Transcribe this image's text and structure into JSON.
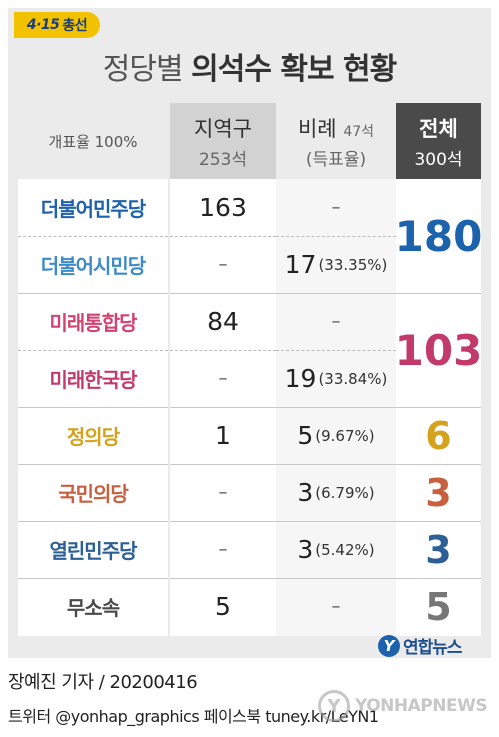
{
  "badge": {
    "mark": "4·15",
    "label": "총선"
  },
  "title": {
    "light": "정당별",
    "bold": "의석수 확보 현황"
  },
  "header": {
    "counting": "개표율 100%",
    "district": {
      "label": "지역구",
      "seats": "253석"
    },
    "pr": {
      "label": "비례",
      "seats": "47석",
      "sub": "(득표율)"
    },
    "total": {
      "label": "전체",
      "seats": "300석"
    }
  },
  "rows": [
    {
      "party": "더불어민주당",
      "color": "#1d62ad",
      "district": "163",
      "pr": "–",
      "pr_pct": ""
    },
    {
      "party": "더불어시민당",
      "color": "#3d8bc7",
      "district": "–",
      "pr": "17",
      "pr_pct": "(33.35%)"
    },
    {
      "party": "미래통합당",
      "color": "#d0426f",
      "district": "84",
      "pr": "–",
      "pr_pct": ""
    },
    {
      "party": "미래한국당",
      "color": "#c23a6a",
      "district": "–",
      "pr": "19",
      "pr_pct": "(33.84%)"
    },
    {
      "party": "정의당",
      "color": "#d4a21c",
      "district": "1",
      "pr": "5",
      "pr_pct": "(9.67%)"
    },
    {
      "party": "국민의당",
      "color": "#c8603f",
      "district": "–",
      "pr": "3",
      "pr_pct": "(6.79%)"
    },
    {
      "party": "열린민주당",
      "color": "#2c5f95",
      "district": "–",
      "pr": "3",
      "pr_pct": "(5.42%)"
    },
    {
      "party": "무소속",
      "color": "#4a4a4a",
      "district": "5",
      "pr": "–",
      "pr_pct": ""
    }
  ],
  "totals": [
    {
      "value": "180",
      "color": "#1d62ad"
    },
    {
      "value": "103",
      "color": "#c23a6a"
    },
    {
      "value": "6",
      "color": "#d4a21c"
    },
    {
      "value": "3",
      "color": "#c8603f"
    },
    {
      "value": "3",
      "color": "#2c5f95"
    },
    {
      "value": "5",
      "color": "#777777"
    }
  ],
  "logo": {
    "mark": "Y",
    "text": "연합뉴스"
  },
  "credit": "장예진 기자 / 20200416",
  "sns": "트위터 @yonhap_graphics  페이스북 tuney.kr/LeYN1",
  "watermark": {
    "mark": "Y",
    "text": "YONHAPNEWS"
  }
}
